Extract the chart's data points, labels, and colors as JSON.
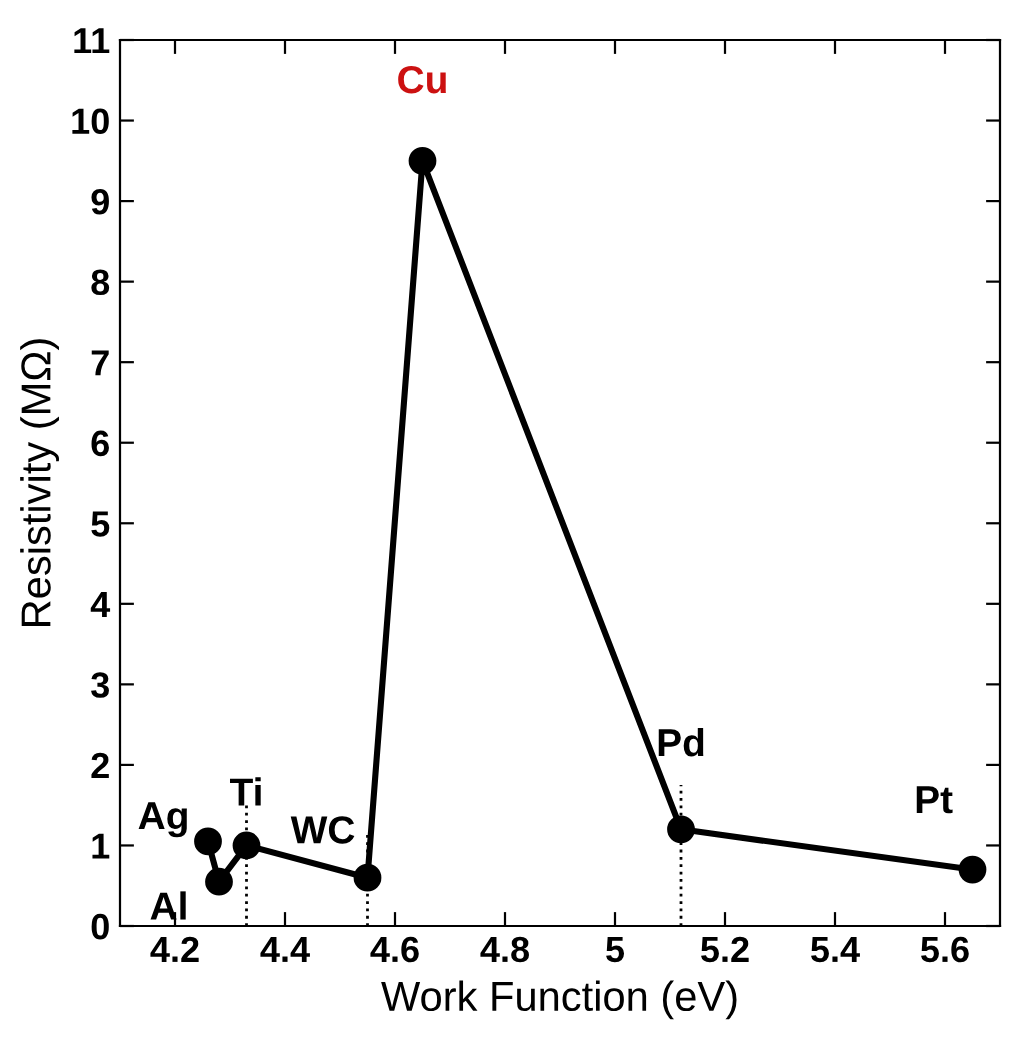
{
  "chart_data": {
    "type": "line",
    "xlabel": "Work Function (eV)",
    "ylabel": "Resistivity (MΩ)",
    "x": [
      4.26,
      4.28,
      4.33,
      4.55,
      4.65,
      5.12,
      5.65
    ],
    "series": [
      {
        "color": "#000000",
        "values": [
          1.05,
          0.55,
          1.0,
          0.6,
          9.5,
          1.2,
          0.7
        ]
      }
    ],
    "marker": "circle",
    "line_style": "solid",
    "grid": false,
    "legend": false,
    "xlim": [
      4.1,
      5.7
    ],
    "xticks": [
      4.2,
      4.4,
      4.6,
      4.8,
      5,
      5.2,
      5.4,
      5.6
    ],
    "ylim": [
      0,
      11
    ],
    "yticks": [
      0,
      1,
      2,
      3,
      4,
      5,
      6,
      7,
      8,
      9,
      10,
      11
    ],
    "ref_lines": [
      {
        "axis": "x",
        "value": 4.33,
        "label": null,
        "line_style": "dotted"
      },
      {
        "axis": "x",
        "value": 4.55,
        "label": null,
        "line_style": "dotted"
      },
      {
        "axis": "x",
        "value": 5.12,
        "label": null,
        "line_style": "dotted"
      }
    ],
    "annotations": [
      {
        "text": "Ag",
        "x": 4.26,
        "y": 1.05
      },
      {
        "text": "Al",
        "x": 4.28,
        "y": 0.55
      },
      {
        "text": "Ti",
        "x": 4.33,
        "y": 1.0
      },
      {
        "text": "WC",
        "x": 4.55,
        "y": 0.6
      },
      {
        "text": "Cu",
        "x": 4.65,
        "y": 9.5
      },
      {
        "text": "Pd",
        "x": 5.12,
        "y": 1.2
      },
      {
        "text": "Pt",
        "x": 5.65,
        "y": 0.7
      }
    ]
  }
}
